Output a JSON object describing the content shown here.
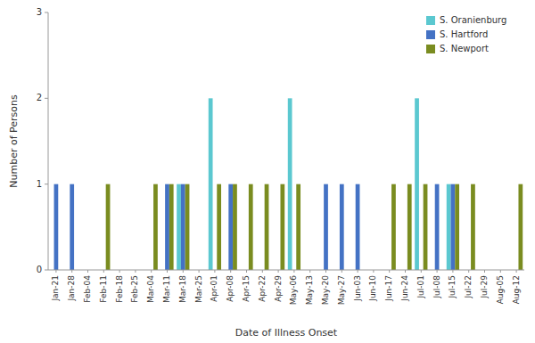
{
  "chart_data": {
    "type": "bar",
    "xlabel": "Date of Illness Onset",
    "ylabel": "Number of Persons",
    "categories": [
      "Jan-21",
      "Jan-28",
      "Feb-04",
      "Feb-11",
      "Feb-18",
      "Feb-25",
      "Mar-04",
      "Mar-11",
      "Mar-18",
      "Mar-25",
      "Apr-01",
      "Apr-08",
      "Apr-15",
      "Apr-22",
      "Apr-29",
      "May-06",
      "May-13",
      "May-20",
      "May-27",
      "Jun-03",
      "Jun-10",
      "Jun-17",
      "Jun-24",
      "Jul-01",
      "Jul-08",
      "Jul-15",
      "Jul-22",
      "Jul-29",
      "Aug-05",
      "Aug-12"
    ],
    "series": [
      {
        "name": "S. Oranienburg",
        "color": "#5BC8D0",
        "values": [
          0,
          0,
          0,
          0,
          0,
          0,
          0,
          0,
          1,
          0,
          2,
          0,
          0,
          0,
          0,
          2,
          0,
          0,
          0,
          0,
          0,
          0,
          0,
          2,
          0,
          1,
          0,
          0,
          0,
          0
        ]
      },
      {
        "name": "S. Hartford",
        "color": "#4472C4",
        "values": [
          1,
          1,
          0,
          0,
          0,
          0,
          0,
          1,
          1,
          0,
          0,
          1,
          0,
          0,
          0,
          0,
          0,
          1,
          1,
          1,
          0,
          0,
          0,
          0,
          1,
          1,
          0,
          0,
          0,
          0
        ]
      },
      {
        "name": "S. Newport",
        "color": "#7A8C20",
        "values": [
          0,
          0,
          0,
          1,
          0,
          0,
          1,
          1,
          1,
          0,
          1,
          1,
          1,
          1,
          1,
          1,
          0,
          0,
          0,
          0,
          0,
          1,
          1,
          1,
          0,
          1,
          1,
          0,
          0,
          1
        ]
      }
    ],
    "ylim": [
      0,
      3
    ],
    "yticks": [
      0,
      1,
      2,
      3
    ],
    "grid": false,
    "legend": "upper right"
  }
}
